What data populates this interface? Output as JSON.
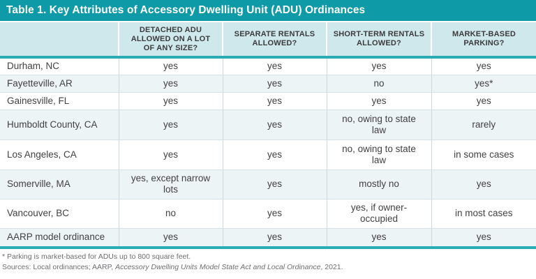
{
  "title": "Table 1. Key Attributes of Accessory Dwelling Unit (ADU) Ordinances",
  "colors": {
    "title_bar_teal": "#0E9BA7",
    "divider_teal": "#2AACB4",
    "header_bg": "#CFE8EB",
    "zebra_row_bg": "#EDF4F6",
    "body_text": "#414042",
    "footnote_text": "#6D6E71"
  },
  "table": {
    "columns": [
      "",
      "DETACHED ADU ALLOWED ON A LOT OF ANY SIZE?",
      "SEPARATE RENTALS ALLOWED?",
      "SHORT-TERM RENTALS ALLOWED?",
      "MARKET-BASED PARKING?"
    ],
    "rows": [
      [
        "Durham, NC",
        "yes",
        "yes",
        "yes",
        "yes"
      ],
      [
        "Fayetteville, AR",
        "yes",
        "yes",
        "no",
        "yes*"
      ],
      [
        "Gainesville, FL",
        "yes",
        "yes",
        "yes",
        "yes"
      ],
      [
        "Humboldt County, CA",
        "yes",
        "yes",
        "no, owing to state law",
        "rarely"
      ],
      [
        "Los Angeles, CA",
        "yes",
        "yes",
        "no, owing to state law",
        "in some cases"
      ],
      [
        "Somerville, MA",
        "yes, except narrow lots",
        "yes",
        "mostly no",
        "yes"
      ],
      [
        "Vancouver, BC",
        "no",
        "yes",
        "yes, if owner-occupied",
        "in most cases"
      ],
      [
        "AARP model ordinance",
        "yes",
        "yes",
        "yes",
        "yes"
      ]
    ]
  },
  "footnotes": {
    "asterisk_note": "* Parking is market-based for ADUs up to 800 square feet.",
    "sources_prefix": "Sources: Local ordinances; AARP, ",
    "sources_italic": "Accessory Dwelling Units Model State Act and Local Ordinance",
    "sources_suffix": ", 2021."
  }
}
